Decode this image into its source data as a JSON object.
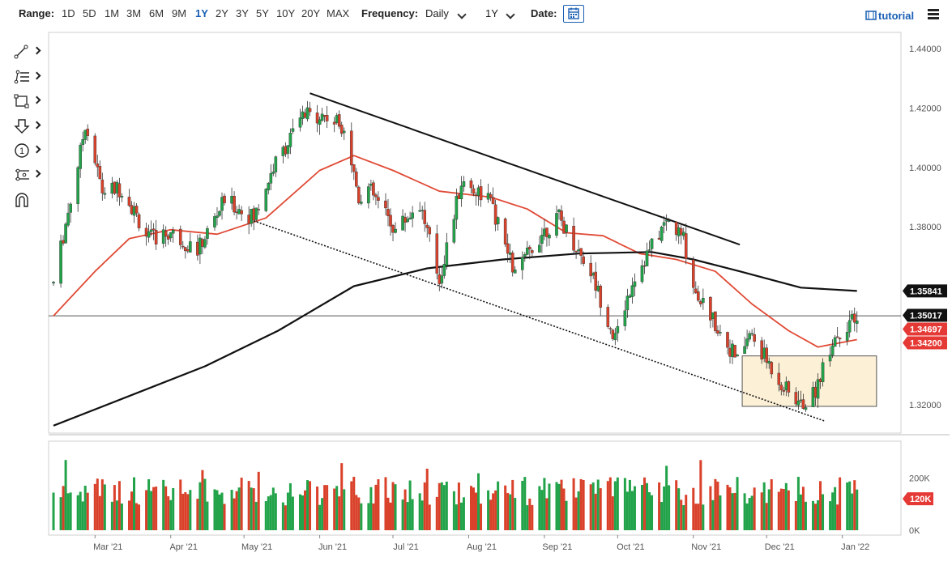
{
  "toolbar": {
    "range_label": "Range:",
    "ranges": [
      "1D",
      "5D",
      "1M",
      "3M",
      "6M",
      "9M",
      "1Y",
      "2Y",
      "3Y",
      "5Y",
      "10Y",
      "20Y",
      "MAX"
    ],
    "active_range": "1Y",
    "frequency_label": "Frequency:",
    "frequency_value": "Daily",
    "period_value": "1Y",
    "date_label": "Date:",
    "tutorial_label": "tutorial"
  },
  "sidebar": {
    "tools": [
      "line-tool-icon",
      "fib-tool-icon",
      "rectangle-tool-icon",
      "arrow-tool-icon",
      "annotation-tool-icon",
      "measure-tool-icon",
      "magnet-icon"
    ],
    "annotation_glyph": "1"
  },
  "chart_data": {
    "type": "candlestick",
    "instrument_note": "",
    "y_ticks": [
      "1.44000",
      "1.42000",
      "1.40000",
      "1.38000",
      "1.32000"
    ],
    "ylim": [
      1.3105,
      1.4455
    ],
    "x_ticks": [
      "Mar '21",
      "Apr '21",
      "May '21",
      "Jun '21",
      "Jul '21",
      "Aug '21",
      "Sep '21",
      "Oct '21",
      "Nov '21",
      "Dec '21",
      "Jan '22"
    ],
    "series": [
      {
        "name": "",
        "kind": "ohlc",
        "color_up": "#22a34a",
        "color_down": "#d9412a",
        "keypoints": [
          {
            "date": "2021-02-12",
            "price": 1.361
          },
          {
            "date": "2021-02-23",
            "price": 1.405
          },
          {
            "date": "2021-02-25",
            "price": 1.415
          },
          {
            "date": "2021-03-04",
            "price": 1.392
          },
          {
            "date": "2021-03-12",
            "price": 1.393
          },
          {
            "date": "2021-03-23",
            "price": 1.376
          },
          {
            "date": "2021-04-01",
            "price": 1.378
          },
          {
            "date": "2021-04-12",
            "price": 1.372
          },
          {
            "date": "2021-04-23",
            "price": 1.389
          },
          {
            "date": "2021-05-05",
            "price": 1.383
          },
          {
            "date": "2021-05-13",
            "price": 1.4
          },
          {
            "date": "2021-05-25",
            "price": 1.417
          },
          {
            "date": "2021-06-01",
            "price": 1.418
          },
          {
            "date": "2021-06-11",
            "price": 1.414
          },
          {
            "date": "2021-06-17",
            "price": 1.39
          },
          {
            "date": "2021-06-21",
            "price": 1.393
          },
          {
            "date": "2021-07-02",
            "price": 1.379
          },
          {
            "date": "2021-07-12",
            "price": 1.388
          },
          {
            "date": "2021-07-20",
            "price": 1.362
          },
          {
            "date": "2021-07-29",
            "price": 1.395
          },
          {
            "date": "2021-08-09",
            "price": 1.39
          },
          {
            "date": "2021-08-20",
            "price": 1.364
          },
          {
            "date": "2021-08-31",
            "price": 1.378
          },
          {
            "date": "2021-09-07",
            "price": 1.383
          },
          {
            "date": "2021-09-20",
            "price": 1.365
          },
          {
            "date": "2021-09-30",
            "price": 1.342
          },
          {
            "date": "2021-10-07",
            "price": 1.362
          },
          {
            "date": "2021-10-21",
            "price": 1.382
          },
          {
            "date": "2021-10-28",
            "price": 1.376
          },
          {
            "date": "2021-11-01",
            "price": 1.36
          },
          {
            "date": "2021-11-09",
            "price": 1.349
          },
          {
            "date": "2021-11-19",
            "price": 1.335
          },
          {
            "date": "2021-11-24",
            "price": 1.344
          },
          {
            "date": "2021-12-08",
            "price": 1.326
          },
          {
            "date": "2021-12-15",
            "price": 1.32
          },
          {
            "date": "2021-12-20",
            "price": 1.323
          },
          {
            "date": "2021-12-28",
            "price": 1.342
          },
          {
            "date": "2022-01-04",
            "price": 1.348
          },
          {
            "date": "2022-01-07",
            "price": 1.347
          }
        ]
      },
      {
        "name": "",
        "kind": "moving-average",
        "color": "#e04a35",
        "points": [
          {
            "date": "2021-02-12",
            "price": 1.35
          },
          {
            "date": "2021-03-01",
            "price": 1.365
          },
          {
            "date": "2021-03-15",
            "price": 1.376
          },
          {
            "date": "2021-04-01",
            "price": 1.379
          },
          {
            "date": "2021-04-20",
            "price": 1.3775
          },
          {
            "date": "2021-05-10",
            "price": 1.383
          },
          {
            "date": "2021-06-01",
            "price": 1.399
          },
          {
            "date": "2021-06-15",
            "price": 1.404
          },
          {
            "date": "2021-07-01",
            "price": 1.399
          },
          {
            "date": "2021-07-20",
            "price": 1.392
          },
          {
            "date": "2021-08-10",
            "price": 1.39
          },
          {
            "date": "2021-08-25",
            "price": 1.386
          },
          {
            "date": "2021-09-10",
            "price": 1.378
          },
          {
            "date": "2021-09-25",
            "price": 1.377
          },
          {
            "date": "2021-10-10",
            "price": 1.371
          },
          {
            "date": "2021-10-25",
            "price": 1.369
          },
          {
            "date": "2021-11-10",
            "price": 1.365
          },
          {
            "date": "2021-11-25",
            "price": 1.354
          },
          {
            "date": "2021-12-10",
            "price": 1.345
          },
          {
            "date": "2021-12-22",
            "price": 1.3395
          },
          {
            "date": "2022-01-07",
            "price": 1.342
          }
        ]
      },
      {
        "name": "",
        "kind": "moving-average",
        "color": "#111111",
        "points": [
          {
            "date": "2021-02-12",
            "price": 1.313
          },
          {
            "date": "2021-03-15",
            "price": 1.323
          },
          {
            "date": "2021-04-15",
            "price": 1.333
          },
          {
            "date": "2021-05-15",
            "price": 1.345
          },
          {
            "date": "2021-06-15",
            "price": 1.36
          },
          {
            "date": "2021-07-15",
            "price": 1.366
          },
          {
            "date": "2021-08-15",
            "price": 1.369
          },
          {
            "date": "2021-09-15",
            "price": 1.371
          },
          {
            "date": "2021-10-15",
            "price": 1.3715
          },
          {
            "date": "2021-11-01",
            "price": 1.369
          },
          {
            "date": "2021-11-20",
            "price": 1.365
          },
          {
            "date": "2021-12-15",
            "price": 1.3595
          },
          {
            "date": "2022-01-07",
            "price": 1.3584
          }
        ]
      }
    ],
    "trendlines": [
      {
        "style": "solid",
        "from": {
          "date": "2021-05-28",
          "price": 1.425
        },
        "to": {
          "date": "2021-11-20",
          "price": 1.374
        }
      },
      {
        "style": "dotted",
        "from": {
          "date": "2021-05-05",
          "price": 1.382
        },
        "to": {
          "date": "2021-12-25",
          "price": 1.3145
        }
      }
    ],
    "horizontal_line": {
      "price": 1.35
    },
    "box": {
      "from": {
        "date": "2021-11-21",
        "price": 1.3365
      },
      "to": {
        "date": "2022-01-15",
        "price": 1.3195
      }
    },
    "price_badges": [
      {
        "label": "1.35841",
        "price": 1.35841,
        "color": "#111111"
      },
      {
        "label": "1.35017",
        "price": 1.35017,
        "color": "#111111"
      },
      {
        "label": "1.34697",
        "price": 1.34697,
        "color": "#e53935"
      },
      {
        "label": "1.34200",
        "price": 1.342,
        "color": "#e53935"
      }
    ],
    "volume": {
      "y_ticks": [
        "200K",
        "0K"
      ],
      "ymax": 340000,
      "current_badge": "120K",
      "values": [
        {
          "date": "2021-03-05",
          "value": 215000
        },
        {
          "date": "2021-12-28",
          "value": 210000
        }
      ]
    },
    "xlim": [
      "2021-02-10",
      "2022-01-25"
    ],
    "grid": false,
    "legend": "none"
  }
}
